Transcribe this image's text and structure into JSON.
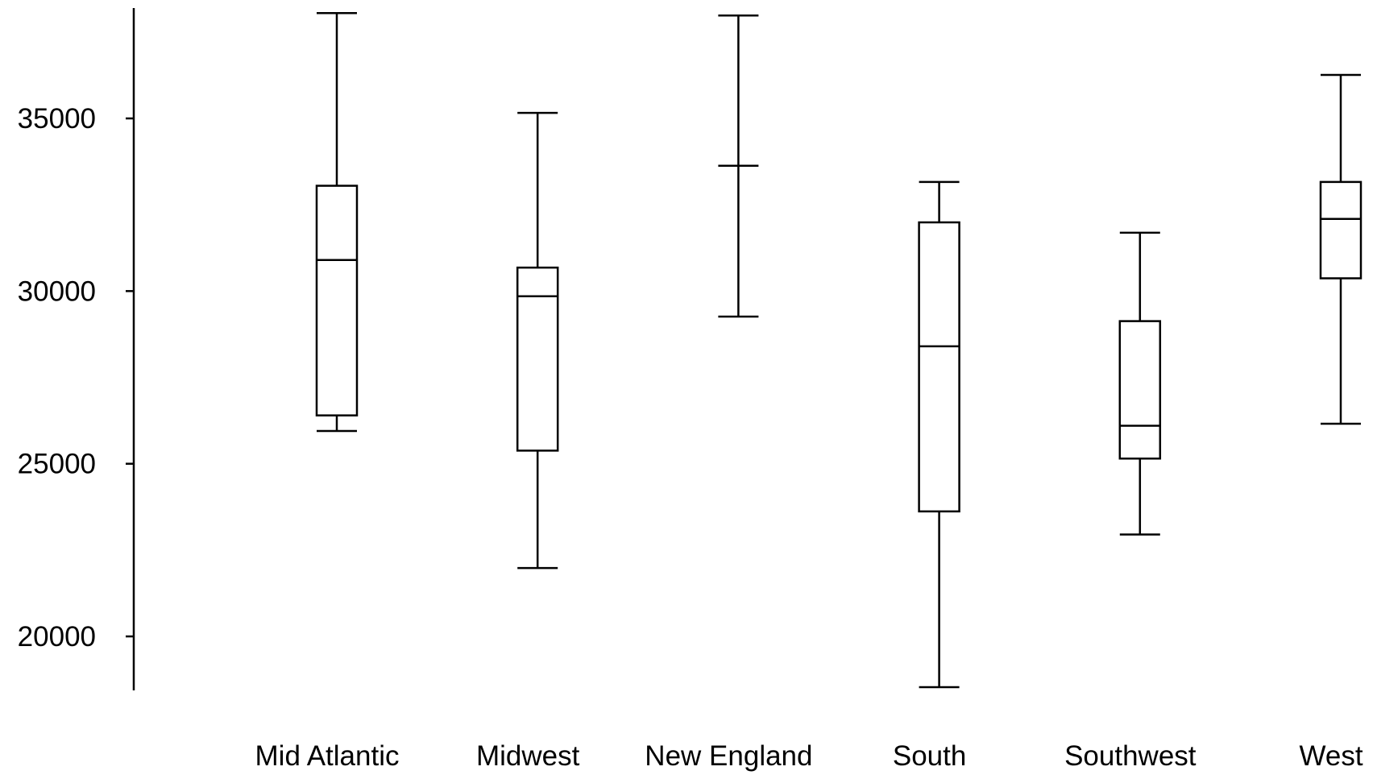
{
  "chart_data": {
    "type": "boxplot",
    "title": "",
    "xlabel": "",
    "ylabel": "",
    "ylim": [
      18500,
      38200
    ],
    "y_ticks": [
      20000,
      25000,
      30000,
      35000
    ],
    "y_tick_labels": [
      "20000",
      "25000",
      "30000",
      "35000"
    ],
    "grid": false,
    "legend": "none",
    "line_color": "#000000",
    "categories": [
      "Mid Atlantic",
      "Midwest",
      "New England",
      "South",
      "Southwest",
      "West"
    ],
    "boxes": [
      {
        "category": "Mid Atlantic",
        "whisker_low": 25950,
        "q1": 26400,
        "median": 30900,
        "q3": 33050,
        "whisker_high": 38050
      },
      {
        "category": "Midwest",
        "whisker_low": 21980,
        "q1": 25380,
        "median": 29850,
        "q3": 30680,
        "whisker_high": 35160
      },
      {
        "category": "New England",
        "whisker_low": 29260,
        "q1": 33630,
        "median": 33630,
        "q3": 33630,
        "whisker_high": 37980
      },
      {
        "category": "South",
        "whisker_low": 18530,
        "q1": 23620,
        "median": 28400,
        "q3": 31990,
        "whisker_high": 33160
      },
      {
        "category": "Southwest",
        "whisker_low": 22950,
        "q1": 25150,
        "median": 26100,
        "q3": 29130,
        "whisker_high": 31690
      },
      {
        "category": "West",
        "whisker_low": 26160,
        "q1": 30370,
        "median": 32090,
        "q3": 33160,
        "whisker_high": 36260
      }
    ]
  }
}
